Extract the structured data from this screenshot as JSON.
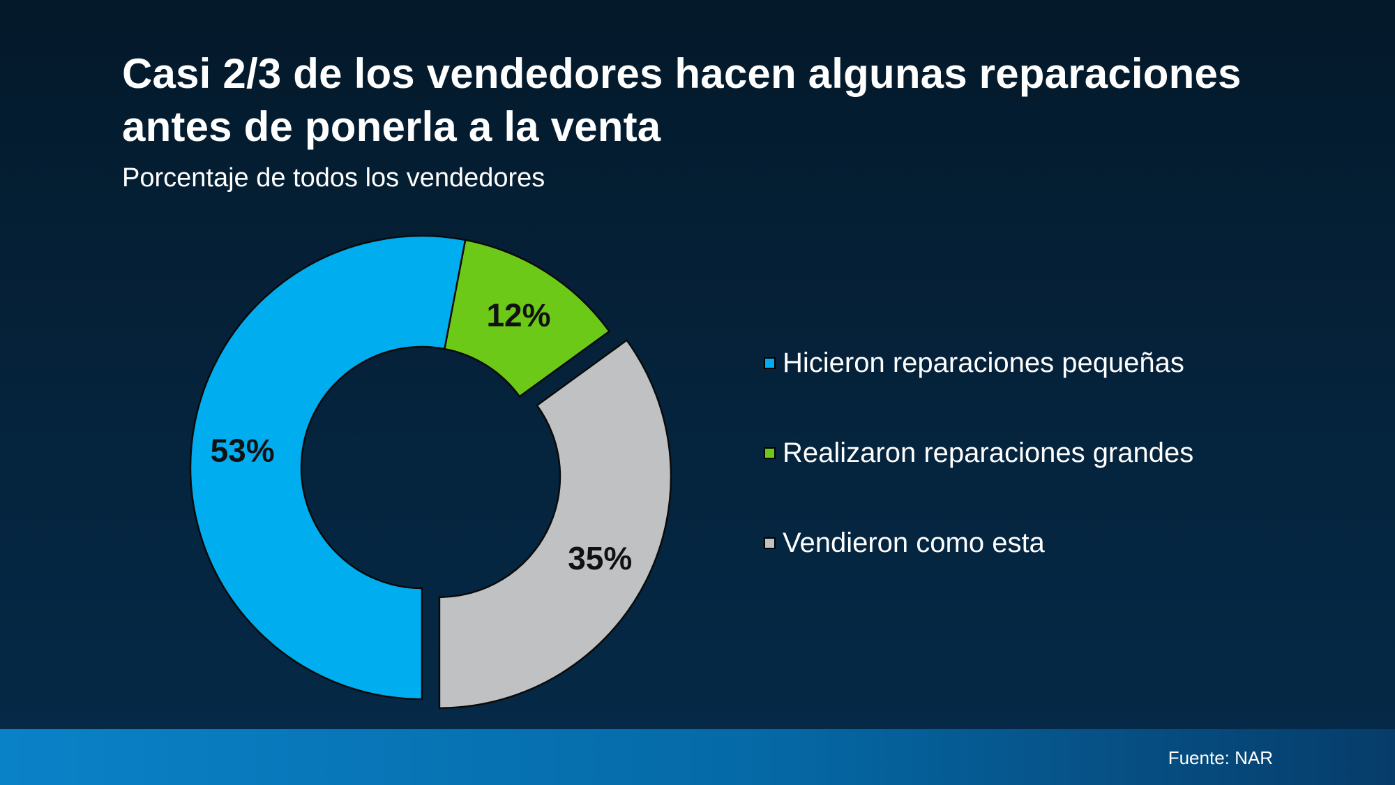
{
  "header": {
    "title": "Casi 2/3 de los vendedores hacen algunas reparaciones antes de ponerla a la venta",
    "subtitle": "Porcentaje de todos los vendedores"
  },
  "footer": {
    "source": "Fuente: NAR"
  },
  "chart_data": {
    "type": "pie",
    "variant": "donut",
    "title": "Casi 2/3 de los vendedores hacen algunas reparaciones antes de ponerla a la venta",
    "subtitle": "Porcentaje de todos los vendedores",
    "legend_position": "right",
    "categories": [
      "Hicieron reparaciones pequeñas",
      "Realizaron reparaciones grandes",
      "Vendieron como esta"
    ],
    "values": [
      53,
      12,
      35
    ],
    "data_labels": [
      "53%",
      "12%",
      "35%"
    ],
    "colors": [
      "#00adef",
      "#6cc918",
      "#bfc1c2"
    ],
    "exploded": [
      false,
      false,
      true
    ],
    "start": "bottom",
    "direction": "clockwise"
  }
}
